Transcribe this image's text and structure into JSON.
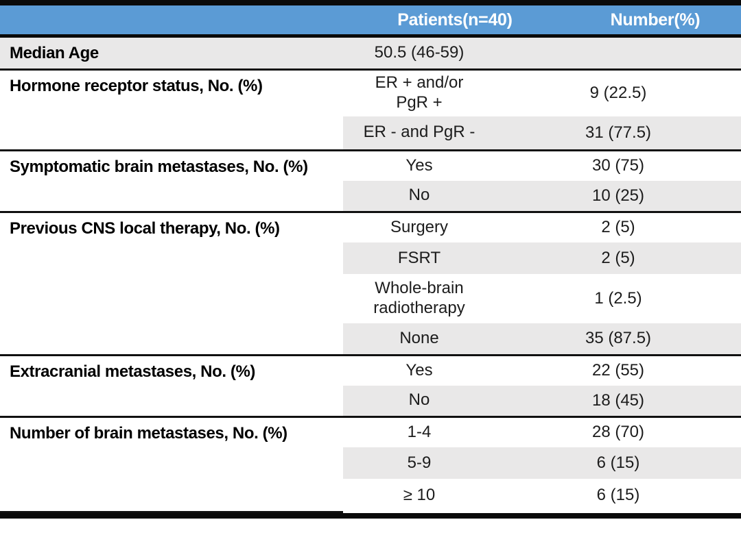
{
  "header": {
    "patients_label": "Patients(n=40)",
    "number_label": "Number(%)"
  },
  "colors": {
    "header_bg": "#5b9bd5",
    "header_text": "#ffffff",
    "alt_row_bg": "#e9e8e8",
    "rule": "#0a0a0a",
    "body_text": "#1c1c1c"
  },
  "sections": [
    {
      "label": "Median Age",
      "rows": [
        {
          "category": "50.5 (46-59)",
          "value": ""
        }
      ]
    },
    {
      "label": "Hormone receptor status, No. (%)",
      "rows": [
        {
          "category": "ER + and/or\nPgR +",
          "value": "9 (22.5)"
        },
        {
          "category": "ER - and PgR -",
          "value": "31 (77.5)"
        }
      ]
    },
    {
      "label": "Symptomatic brain metastases, No. (%)",
      "rows": [
        {
          "category": "Yes",
          "value": "30 (75)"
        },
        {
          "category": "No",
          "value": "10 (25)"
        }
      ]
    },
    {
      "label": "Previous CNS local therapy, No. (%)",
      "rows": [
        {
          "category": "Surgery",
          "value": "2 (5)"
        },
        {
          "category": "FSRT",
          "value": "2 (5)"
        },
        {
          "category": "Whole-brain\nradiotherapy",
          "value": "1 (2.5)"
        },
        {
          "category": "None",
          "value": "35 (87.5)"
        }
      ]
    },
    {
      "label": "Extracranial metastases, No. (%)",
      "rows": [
        {
          "category": "Yes",
          "value": "22 (55)"
        },
        {
          "category": "No",
          "value": "18 (45)"
        }
      ]
    },
    {
      "label": "Number of brain metastases, No. (%)",
      "rows": [
        {
          "category": "1-4",
          "value": "28 (70)"
        },
        {
          "category": "5-9",
          "value": "6 (15)"
        },
        {
          "category": "≥ 10",
          "value": "6 (15)"
        }
      ]
    }
  ]
}
